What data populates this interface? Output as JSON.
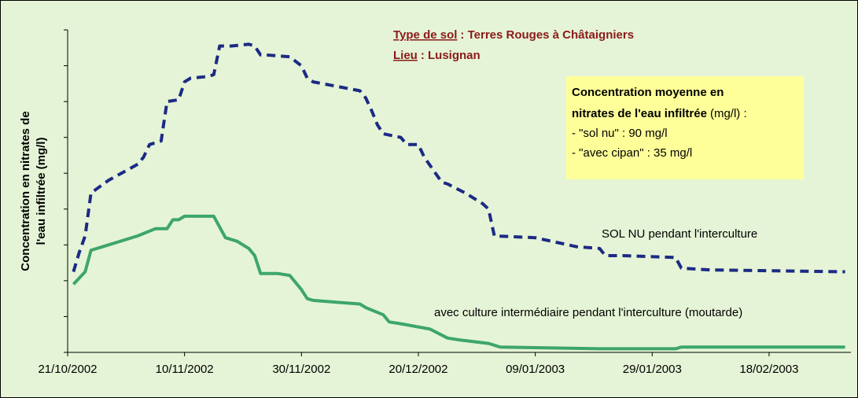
{
  "chart_data": {
    "type": "line",
    "title_lines": [
      {
        "label": "Type de sol",
        "text": ": Terres Rouges à Châtaigniers"
      },
      {
        "label": "Lieu",
        "text": ": Lusignan"
      }
    ],
    "y_label": [
      "Concentration en nitrates de",
      "l'eau infiltrée (mg/l)"
    ],
    "info_box": {
      "heading": [
        "Concentration moyenne en",
        "nitrates de l'eau infiltrée"
      ],
      "unit": "(mg/l) :",
      "lines": [
        "- \"sol nu\" : 90 mg/l",
        "- \"avec cipan\" : 35 mg/l"
      ]
    },
    "xlim": [
      "2002-10-21",
      "2003-03-04"
    ],
    "xticks": [
      {
        "value": "2002-10-21",
        "label": "21/10/2002"
      },
      {
        "value": "2002-11-10",
        "label": "10/11/2002"
      },
      {
        "value": "2002-11-30",
        "label": "30/11/2002"
      },
      {
        "value": "2002-12-20",
        "label": "20/12/2002"
      },
      {
        "value": "2003-01-09",
        "label": "09/01/2003"
      },
      {
        "value": "2003-01-29",
        "label": "29/01/2003"
      },
      {
        "value": "2003-02-18",
        "label": "18/02/2003"
      }
    ],
    "ylim": [
      0,
      180
    ],
    "yticks": [
      0,
      20,
      40,
      60,
      80,
      100,
      120,
      140,
      160,
      180
    ],
    "series": [
      {
        "name": "SOL NU pendant l'interculture",
        "color": "#1c2a85",
        "dashed": true,
        "x": [
          "2002-10-22",
          "2002-10-23",
          "2002-10-24",
          "2002-10-25",
          "2002-10-28",
          "2002-11-02",
          "2002-11-03",
          "2002-11-04",
          "2002-11-06",
          "2002-11-07",
          "2002-11-09",
          "2002-11-10",
          "2002-11-11",
          "2002-11-14",
          "2002-11-15",
          "2002-11-16",
          "2002-11-18",
          "2002-11-21",
          "2002-11-22",
          "2002-11-23",
          "2002-11-24",
          "2002-11-28",
          "2002-11-30",
          "2002-12-01",
          "2002-12-02",
          "2002-12-10",
          "2002-12-11",
          "2002-12-12",
          "2002-12-13",
          "2002-12-14",
          "2002-12-17",
          "2002-12-18",
          "2002-12-20",
          "2002-12-21",
          "2002-12-24",
          "2002-12-25",
          "2002-12-28",
          "2002-12-31",
          "2003-01-01",
          "2003-01-02",
          "2003-01-09",
          "2003-01-16",
          "2003-01-20",
          "2003-01-21",
          "2003-01-24",
          "2003-02-02",
          "2003-02-03",
          "2003-02-08",
          "2003-03-03"
        ],
        "values": [
          45,
          56,
          65,
          89,
          96,
          105,
          109,
          116,
          118,
          140,
          141,
          151,
          153,
          154,
          155,
          171,
          171,
          172,
          171,
          166,
          166,
          165,
          160,
          153,
          151,
          146,
          142,
          135,
          127,
          122,
          120,
          116,
          116,
          109,
          95,
          94,
          89,
          83,
          80,
          65,
          64,
          59,
          58,
          54,
          54,
          53,
          47,
          46,
          45
        ]
      },
      {
        "name": "avec culture intermédiaire pendant l'interculture (moutarde)",
        "color": "#3da668",
        "dashed": false,
        "x": [
          "2002-10-22",
          "2002-10-24",
          "2002-10-25",
          "2002-11-02",
          "2002-11-05",
          "2002-11-07",
          "2002-11-08",
          "2002-11-09",
          "2002-11-10",
          "2002-11-13",
          "2002-11-15",
          "2002-11-17",
          "2002-11-19",
          "2002-11-21",
          "2002-11-22",
          "2002-11-23",
          "2002-11-26",
          "2002-11-28",
          "2002-11-29",
          "2002-11-30",
          "2002-12-01",
          "2002-12-02",
          "2002-12-06",
          "2002-12-10",
          "2002-12-11",
          "2002-12-14",
          "2002-12-15",
          "2002-12-17",
          "2002-12-22",
          "2002-12-25",
          "2002-12-27",
          "2003-01-01",
          "2003-01-03",
          "2003-01-20",
          "2003-02-02",
          "2003-02-03",
          "2003-03-03"
        ],
        "values": [
          38,
          45,
          57,
          65,
          69,
          69,
          74,
          74,
          76,
          76,
          76,
          64,
          62,
          58,
          54,
          44,
          44,
          43,
          39,
          35,
          30,
          29,
          28,
          27,
          25,
          21,
          17,
          16,
          13,
          8,
          7,
          5,
          3,
          2,
          2,
          3,
          3
        ]
      }
    ]
  }
}
